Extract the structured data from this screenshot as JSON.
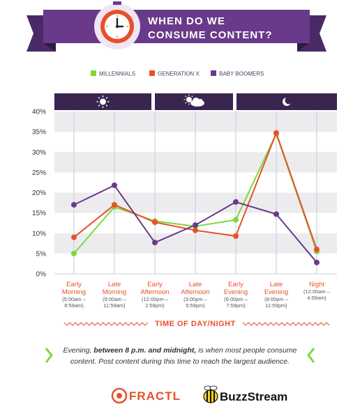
{
  "header": {
    "title_line1": "WHEN DO WE",
    "title_line2": "CONSUME CONTENT?",
    "icon": "clock-icon"
  },
  "legend": [
    {
      "name": "MILLENNIALS",
      "color": "#7dd83a"
    },
    {
      "name": "GENERATION X",
      "color": "#e8502a"
    },
    {
      "name": "BABY BOOMERS",
      "color": "#6a3a8a"
    }
  ],
  "period_icons": [
    "sun-icon",
    "sun-cloud-icon",
    "moon-icon"
  ],
  "chart_data": {
    "type": "line",
    "categories": [
      {
        "name": "Early\nMorning",
        "time": "(5:00am –\n8:59am)"
      },
      {
        "name": "Late\nMorning",
        "time": "(9:00am –\n11:59am)"
      },
      {
        "name": "Early\nAfternoon",
        "time": "(12:00pm –\n2:59pm)"
      },
      {
        "name": "Late\nAfternoon",
        "time": "(3:00pm –\n5:59pm)"
      },
      {
        "name": "Early\nEvening",
        "time": "(6:00pm –\n7:59pm)"
      },
      {
        "name": "Late\nEvening",
        "time": "(8:00pm –\n11:59pm)"
      },
      {
        "name": "Night",
        "time": "(12:00am –\n4:59am)"
      }
    ],
    "series": [
      {
        "name": "MILLENNIALS",
        "color": "#7dd83a",
        "values": [
          5,
          16.5,
          13,
          11.7,
          13.3,
          34.5,
          5.5
        ]
      },
      {
        "name": "GENERATION X",
        "color": "#e8502a",
        "values": [
          9,
          17,
          12.7,
          10.7,
          9.3,
          34.7,
          6
        ]
      },
      {
        "name": "BABY BOOMERS",
        "color": "#6a3a8a",
        "values": [
          17,
          21.8,
          7.7,
          12,
          17.7,
          14.7,
          2.8
        ]
      }
    ],
    "yticks": [
      "0%",
      "5%",
      "10%",
      "15%",
      "20%",
      "25%",
      "30%",
      "35%",
      "40%"
    ],
    "ylim": [
      0,
      40
    ],
    "xlabel": "TIME OF DAY/NIGHT",
    "ylabel": "",
    "grid": true
  },
  "callout": {
    "line1_pre": "Evening, ",
    "line1_bold": "between 8 p.m. and midnight,",
    "line1_post": " is when most people consume",
    "line2": "content. Post content during this time to reach the largest audience."
  },
  "logos": {
    "fractl": "FRACTL",
    "buzzstream": "BuzzStream"
  }
}
